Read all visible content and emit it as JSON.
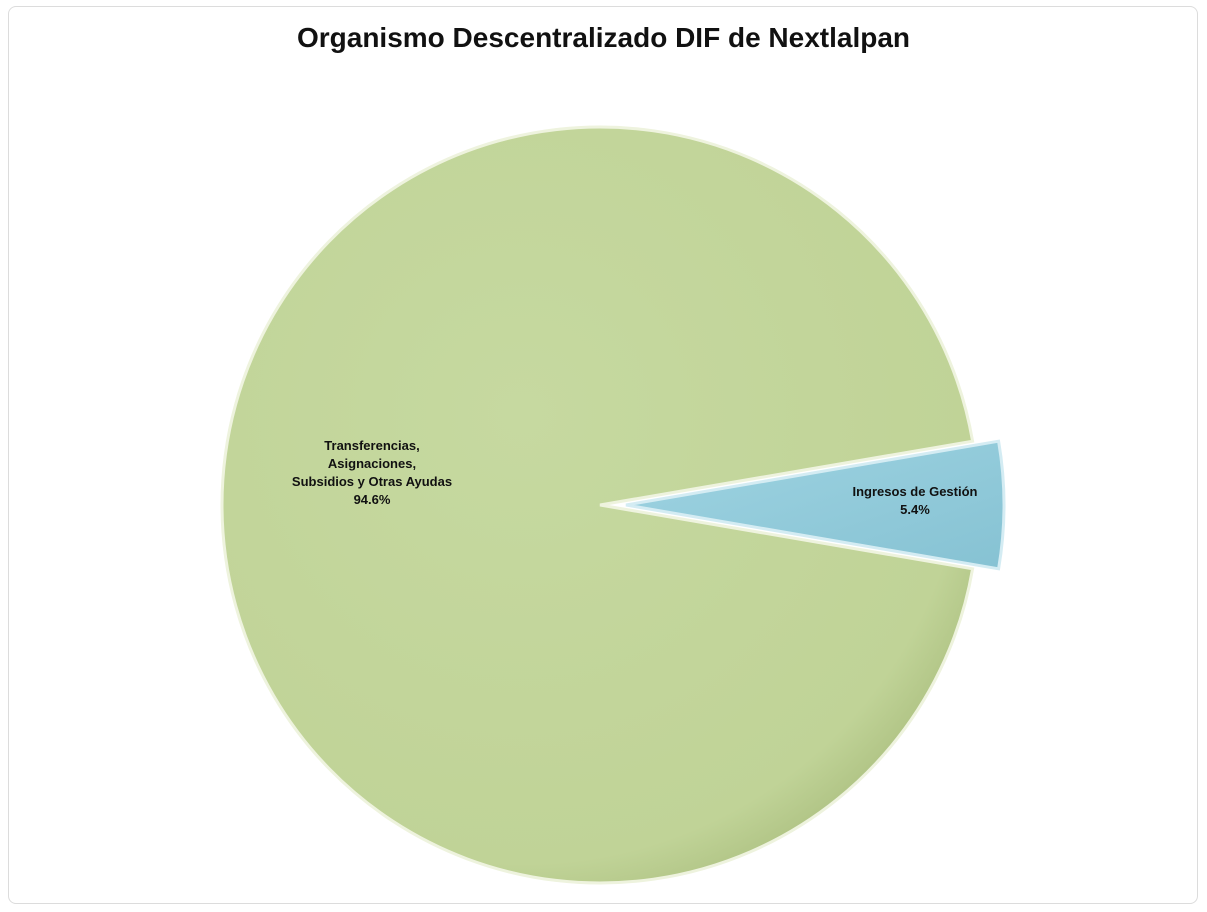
{
  "chart_data": {
    "type": "pie",
    "title": "Organismo Descentralizado DIF de Nextlalpan",
    "slices": [
      {
        "label_lines": [
          "Transferencias,",
          "Asignaciones,",
          "Subsidios y Otras Ayudas"
        ],
        "value_label": "94.6%",
        "value": 94.6,
        "color": "#c3d69b",
        "exploded": false
      },
      {
        "label_lines": [
          "Ingresos de Gestión"
        ],
        "value_label": "5.4%",
        "value": 5.4,
        "color": "#93cddd",
        "exploded": true
      }
    ]
  }
}
